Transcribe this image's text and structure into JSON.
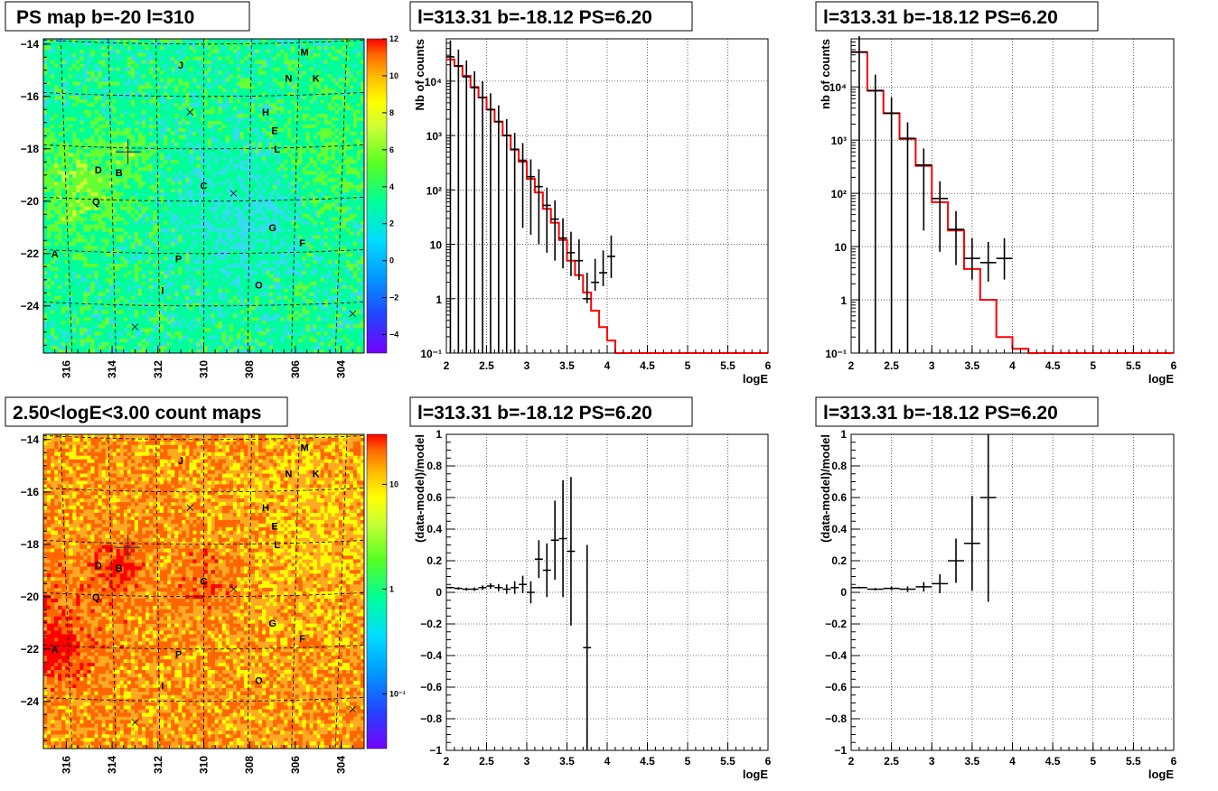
{
  "chart_data": [
    {
      "type": "heatmap",
      "id": "psmap",
      "title": "PS map b=-20 l=310",
      "xlim": [
        317,
        303
      ],
      "ylim": [
        -25.8,
        -13.8
      ],
      "xticks": [
        316,
        314,
        312,
        310,
        308,
        306,
        304
      ],
      "yticks": [
        -14,
        -16,
        -18,
        -20,
        -22,
        -24
      ],
      "colorbar": {
        "min": -5,
        "max": 12,
        "ticks": [
          -4,
          -2,
          0,
          2,
          4,
          6,
          8,
          10,
          12
        ]
      },
      "colors": [
        "#6600ff",
        "#0066ff",
        "#00ccff",
        "#00ff99",
        "#66ff33",
        "#ccff33",
        "#ffff00",
        "#ffcc00",
        "#ff6600",
        "#ff0000"
      ],
      "background_color": "#33ddee",
      "sources": [
        {
          "name": "M",
          "l": 305.6,
          "b": -14.3
        },
        {
          "name": "N",
          "l": 306.3,
          "b": -15.3
        },
        {
          "name": "K",
          "l": 305.1,
          "b": -15.3
        },
        {
          "name": "J",
          "l": 311.0,
          "b": -14.8
        },
        {
          "name": "H",
          "l": 307.3,
          "b": -16.6
        },
        {
          "name": "E",
          "l": 306.9,
          "b": -17.3
        },
        {
          "name": "L",
          "l": 306.8,
          "b": -18.0
        },
        {
          "name": "D",
          "l": 314.6,
          "b": -18.8
        },
        {
          "name": "B",
          "l": 313.7,
          "b": -18.9
        },
        {
          "name": "C",
          "l": 310.0,
          "b": -19.4
        },
        {
          "name": "Q",
          "l": 314.7,
          "b": -20.0
        },
        {
          "name": "G",
          "l": 307.0,
          "b": -21.0
        },
        {
          "name": "F",
          "l": 305.7,
          "b": -21.6
        },
        {
          "name": "A",
          "l": 316.5,
          "b": -22.0
        },
        {
          "name": "P",
          "l": 311.1,
          "b": -22.2
        },
        {
          "name": "O",
          "l": 307.6,
          "b": -23.2
        },
        {
          "name": "I",
          "l": 311.8,
          "b": -23.4
        }
      ],
      "markers": [
        {
          "l": 310.6,
          "b": -16.6
        },
        {
          "l": 308.7,
          "b": -19.7
        },
        {
          "l": 313.0,
          "b": -24.8
        },
        {
          "l": 303.5,
          "b": -24.3
        }
      ],
      "selected": {
        "l": 313.31,
        "b": -18.12
      }
    },
    {
      "type": "line",
      "id": "spec1",
      "title": "l=313.31 b=-18.12 PS=6.20",
      "xlabel": "logE",
      "ylabel": "Nb of counts",
      "xlim": [
        2,
        6
      ],
      "ylim": [
        0.1,
        60000
      ],
      "yscale": "log",
      "xticks": [
        2,
        2.5,
        3,
        3.5,
        4,
        4.5,
        5,
        5.5,
        6
      ],
      "yticks": [
        0.1,
        1,
        10,
        100,
        1000,
        10000
      ],
      "ytick_labels": [
        "10⁻¹",
        "1",
        "10",
        "10²",
        "10³",
        "10⁴"
      ],
      "grid": true,
      "model_color": "#ff0000",
      "model_step": {
        "edges": [
          2.0,
          2.1,
          2.2,
          2.3,
          2.4,
          2.5,
          2.6,
          2.7,
          2.8,
          2.9,
          3.0,
          3.1,
          3.2,
          3.3,
          3.4,
          3.5,
          3.6,
          3.7,
          3.8,
          3.9,
          4.0,
          4.1,
          4.2,
          6.0
        ],
        "values": [
          25000,
          19000,
          12500,
          7800,
          5000,
          3000,
          1800,
          1000,
          550,
          330,
          160,
          90,
          45,
          25,
          12,
          5,
          2.7,
          1.3,
          0.6,
          0.3,
          0.17,
          0.1,
          0.1
        ]
      },
      "data_points": [
        {
          "x": 2.05,
          "y": 28000,
          "xerr": 0.05,
          "yerr_lo": 28000,
          "yerr_hi": 28000
        },
        {
          "x": 2.15,
          "y": 19000,
          "xerr": 0.05,
          "yerr_lo": 19000,
          "yerr_hi": 19000
        },
        {
          "x": 2.25,
          "y": 12000,
          "xerr": 0.05,
          "yerr_lo": 12000,
          "yerr_hi": 12000
        },
        {
          "x": 2.35,
          "y": 7600,
          "xerr": 0.05,
          "yerr_lo": 7600,
          "yerr_hi": 7600
        },
        {
          "x": 2.45,
          "y": 5000,
          "xerr": 0.05,
          "yerr_lo": 5000,
          "yerr_hi": 5000
        },
        {
          "x": 2.55,
          "y": 3000,
          "xerr": 0.05,
          "yerr_lo": 3000,
          "yerr_hi": 3000
        },
        {
          "x": 2.65,
          "y": 1800,
          "xerr": 0.05,
          "yerr_lo": 1800,
          "yerr_hi": 1800
        },
        {
          "x": 2.75,
          "y": 1000,
          "xerr": 0.05,
          "yerr_lo": 1000,
          "yerr_hi": 1000
        },
        {
          "x": 2.85,
          "y": 560,
          "xerr": 0.05,
          "yerr_lo": 560,
          "yerr_hi": 560
        },
        {
          "x": 2.95,
          "y": 350,
          "xerr": 0.05,
          "yerr_lo": 330,
          "yerr_hi": 380
        },
        {
          "x": 3.05,
          "y": 175,
          "xerr": 0.05,
          "yerr_lo": 160,
          "yerr_hi": 190
        },
        {
          "x": 3.15,
          "y": 115,
          "xerr": 0.05,
          "yerr_lo": 105,
          "yerr_hi": 125
        },
        {
          "x": 3.25,
          "y": 52,
          "xerr": 0.05,
          "yerr_lo": 45,
          "yerr_hi": 59
        },
        {
          "x": 3.35,
          "y": 29,
          "xerr": 0.05,
          "yerr_lo": 24,
          "yerr_hi": 35
        },
        {
          "x": 3.45,
          "y": 13,
          "xerr": 0.05,
          "yerr_lo": 9.4,
          "yerr_hi": 17
        },
        {
          "x": 3.55,
          "y": 7,
          "xerr": 0.05,
          "yerr_lo": 4.4,
          "yerr_hi": 10
        },
        {
          "x": 3.65,
          "y": 5,
          "xerr": 0.05,
          "yerr_lo": 2.8,
          "yerr_hi": 7.3
        },
        {
          "x": 3.75,
          "y": 1,
          "xerr": 0.05,
          "yerr_lo": 0.1,
          "yerr_hi": 2
        },
        {
          "x": 3.85,
          "y": 2,
          "xerr": 0.05,
          "yerr_lo": 0.6,
          "yerr_hi": 3.4
        },
        {
          "x": 3.95,
          "y": 3,
          "xerr": 0.05,
          "yerr_lo": 1.3,
          "yerr_hi": 4.7
        },
        {
          "x": 4.05,
          "y": 6,
          "xerr": 0.05,
          "yerr_lo": 3.6,
          "yerr_hi": 8.5
        }
      ]
    },
    {
      "type": "line",
      "id": "spec2",
      "title": "l=313.31 b=-18.12 PS=6.20",
      "xlabel": "logE",
      "ylabel": "nb of counts",
      "xlim": [
        2,
        6
      ],
      "ylim": [
        0.1,
        80000
      ],
      "yscale": "log",
      "xticks": [
        2,
        2.5,
        3,
        3.5,
        4,
        4.5,
        5,
        5.5,
        6
      ],
      "yticks": [
        0.1,
        1,
        10,
        100,
        1000,
        10000
      ],
      "ytick_labels": [
        "10⁻¹",
        "1",
        "10",
        "10²",
        "10³",
        "10⁴"
      ],
      "grid": true,
      "model_color": "#ff0000",
      "model_step": {
        "edges": [
          2.0,
          2.2,
          2.4,
          2.6,
          2.8,
          3.0,
          3.2,
          3.4,
          3.6,
          3.8,
          4.0,
          4.2,
          4.4,
          6.0
        ],
        "values": [
          45000,
          8500,
          3200,
          1050,
          330,
          68,
          20,
          3.8,
          1.0,
          0.2,
          0.12,
          0.1,
          0.1
        ]
      },
      "data_points": [
        {
          "x": 2.1,
          "y": 45000,
          "xerr": 0.1,
          "yerr_lo": 45000,
          "yerr_hi": 45000
        },
        {
          "x": 2.3,
          "y": 8500,
          "xerr": 0.1,
          "yerr_lo": 8500,
          "yerr_hi": 8500
        },
        {
          "x": 2.5,
          "y": 3200,
          "xerr": 0.1,
          "yerr_lo": 3200,
          "yerr_hi": 3200
        },
        {
          "x": 2.7,
          "y": 1080,
          "xerr": 0.1,
          "yerr_lo": 1080,
          "yerr_hi": 1080
        },
        {
          "x": 2.9,
          "y": 340,
          "xerr": 0.1,
          "yerr_lo": 320,
          "yerr_hi": 360
        },
        {
          "x": 3.1,
          "y": 80,
          "xerr": 0.1,
          "yerr_lo": 72,
          "yerr_hi": 89
        },
        {
          "x": 3.3,
          "y": 21,
          "xerr": 0.1,
          "yerr_lo": 16.5,
          "yerr_hi": 25.5
        },
        {
          "x": 3.5,
          "y": 6,
          "xerr": 0.1,
          "yerr_lo": 3.6,
          "yerr_hi": 8.4
        },
        {
          "x": 3.7,
          "y": 5,
          "xerr": 0.1,
          "yerr_lo": 2.8,
          "yerr_hi": 7.2
        },
        {
          "x": 3.9,
          "y": 6,
          "xerr": 0.1,
          "yerr_lo": 3.6,
          "yerr_hi": 8.4
        }
      ]
    },
    {
      "type": "heatmap",
      "id": "countmap",
      "title": "2.50<logE<3.00 count maps",
      "xlim": [
        317,
        303
      ],
      "ylim": [
        -25.8,
        -13.8
      ],
      "xticks": [
        316,
        314,
        312,
        310,
        308,
        306,
        304
      ],
      "yticks": [
        -14,
        -16,
        -18,
        -20,
        -22,
        -24
      ],
      "colorbar": {
        "scale": "log",
        "min": 0.03,
        "max": 30,
        "ticks": [
          0.1,
          1,
          10
        ],
        "tick_labels": [
          "10⁻¹",
          "1",
          "10"
        ]
      },
      "colors": [
        "#6600ff",
        "#0066ff",
        "#00ccff",
        "#00ff99",
        "#66ff33",
        "#ccff33",
        "#ffff00",
        "#ffcc00",
        "#ff6600",
        "#ff0000"
      ],
      "background_color": "#ffaa22",
      "sources": [
        {
          "name": "M",
          "l": 305.6,
          "b": -14.3
        },
        {
          "name": "N",
          "l": 306.3,
          "b": -15.3
        },
        {
          "name": "K",
          "l": 305.1,
          "b": -15.3
        },
        {
          "name": "J",
          "l": 311.0,
          "b": -14.8
        },
        {
          "name": "H",
          "l": 307.3,
          "b": -16.6
        },
        {
          "name": "E",
          "l": 306.9,
          "b": -17.3
        },
        {
          "name": "L",
          "l": 306.8,
          "b": -18.0
        },
        {
          "name": "D",
          "l": 314.6,
          "b": -18.8
        },
        {
          "name": "B",
          "l": 313.7,
          "b": -18.9
        },
        {
          "name": "C",
          "l": 310.0,
          "b": -19.4
        },
        {
          "name": "Q",
          "l": 314.7,
          "b": -20.0
        },
        {
          "name": "G",
          "l": 307.0,
          "b": -21.0
        },
        {
          "name": "F",
          "l": 305.7,
          "b": -21.6
        },
        {
          "name": "A",
          "l": 316.5,
          "b": -22.0
        },
        {
          "name": "P",
          "l": 311.1,
          "b": -22.2
        },
        {
          "name": "O",
          "l": 307.6,
          "b": -23.2
        },
        {
          "name": "I",
          "l": 311.8,
          "b": -23.4
        }
      ],
      "markers": [
        {
          "l": 310.6,
          "b": -16.6
        },
        {
          "l": 308.7,
          "b": -19.7
        },
        {
          "l": 313.0,
          "b": -24.8
        },
        {
          "l": 303.5,
          "b": -24.3
        }
      ],
      "selected": {
        "l": 313.31,
        "b": -18.12
      }
    },
    {
      "type": "scatter",
      "id": "resid1",
      "title": "l=313.31 b=-18.12 PS=6.20",
      "xlabel": "logE",
      "ylabel": "(data-model)/model",
      "xlim": [
        2,
        6
      ],
      "ylim": [
        -1,
        1
      ],
      "xticks": [
        2,
        2.5,
        3,
        3.5,
        4,
        4.5,
        5,
        5.5,
        6
      ],
      "yticks": [
        -1,
        -0.8,
        -0.6,
        -0.4,
        -0.2,
        0,
        0.2,
        0.4,
        0.6,
        0.8,
        1
      ],
      "grid": true,
      "data_points": [
        {
          "x": 2.05,
          "y": 0.03,
          "xerr": 0.05,
          "yerr": 0.006
        },
        {
          "x": 2.15,
          "y": 0.025,
          "xerr": 0.05,
          "yerr": 0.007
        },
        {
          "x": 2.25,
          "y": 0.02,
          "xerr": 0.05,
          "yerr": 0.009
        },
        {
          "x": 2.35,
          "y": 0.02,
          "xerr": 0.05,
          "yerr": 0.011
        },
        {
          "x": 2.45,
          "y": 0.03,
          "xerr": 0.05,
          "yerr": 0.014
        },
        {
          "x": 2.55,
          "y": 0.04,
          "xerr": 0.05,
          "yerr": 0.018
        },
        {
          "x": 2.65,
          "y": 0.03,
          "xerr": 0.05,
          "yerr": 0.023
        },
        {
          "x": 2.75,
          "y": 0.02,
          "xerr": 0.05,
          "yerr": 0.03
        },
        {
          "x": 2.85,
          "y": 0.03,
          "xerr": 0.05,
          "yerr": 0.04
        },
        {
          "x": 2.95,
          "y": 0.05,
          "xerr": 0.05,
          "yerr": 0.055
        },
        {
          "x": 3.05,
          "y": 0.0,
          "xerr": 0.05,
          "yerr": 0.07
        },
        {
          "x": 3.15,
          "y": 0.21,
          "xerr": 0.05,
          "yerr": 0.12
        },
        {
          "x": 3.25,
          "y": 0.14,
          "xerr": 0.05,
          "yerr": 0.17
        },
        {
          "x": 3.35,
          "y": 0.33,
          "xerr": 0.05,
          "yerr": 0.25
        },
        {
          "x": 3.45,
          "y": 0.34,
          "xerr": 0.05,
          "yerr": 0.37
        },
        {
          "x": 3.55,
          "y": 0.26,
          "xerr": 0.05,
          "yerr": 0.47
        },
        {
          "x": 3.75,
          "y": -0.35,
          "xerr": 0.05,
          "yerr": 0.65
        }
      ]
    },
    {
      "type": "scatter",
      "id": "resid2",
      "title": "l=313.31 b=-18.12 PS=6.20",
      "xlabel": "logE",
      "ylabel": "(data-model)/model",
      "xlim": [
        2,
        6
      ],
      "ylim": [
        -1,
        1
      ],
      "xticks": [
        2,
        2.5,
        3,
        3.5,
        4,
        4.5,
        5,
        5.5,
        6
      ],
      "yticks": [
        -1,
        -0.8,
        -0.6,
        -0.4,
        -0.2,
        0,
        0.2,
        0.4,
        0.6,
        0.8,
        1
      ],
      "grid": true,
      "data_points": [
        {
          "x": 2.1,
          "y": 0.03,
          "xerr": 0.1,
          "yerr": 0.005
        },
        {
          "x": 2.3,
          "y": 0.02,
          "xerr": 0.1,
          "yerr": 0.008
        },
        {
          "x": 2.5,
          "y": 0.025,
          "xerr": 0.1,
          "yerr": 0.012
        },
        {
          "x": 2.7,
          "y": 0.02,
          "xerr": 0.1,
          "yerr": 0.018
        },
        {
          "x": 2.9,
          "y": 0.035,
          "xerr": 0.1,
          "yerr": 0.03
        },
        {
          "x": 3.1,
          "y": 0.055,
          "xerr": 0.1,
          "yerr": 0.06
        },
        {
          "x": 3.3,
          "y": 0.2,
          "xerr": 0.1,
          "yerr": 0.14
        },
        {
          "x": 3.5,
          "y": 0.31,
          "xerr": 0.1,
          "yerr": 0.3
        },
        {
          "x": 3.7,
          "y": 0.6,
          "xerr": 0.1,
          "yerr": 0.66
        }
      ]
    }
  ]
}
